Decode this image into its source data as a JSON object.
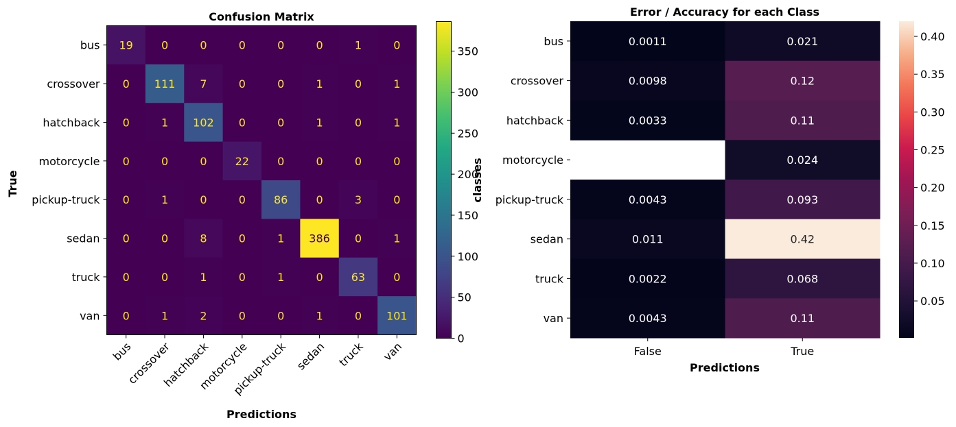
{
  "chart_data": [
    {
      "type": "heatmap",
      "title": "Confusion Matrix",
      "xlabel": "Predictions",
      "ylabel": "True",
      "x_categories": [
        "bus",
        "crossover",
        "hatchback",
        "motorcycle",
        "pickup-truck",
        "sedan",
        "truck",
        "van"
      ],
      "y_categories": [
        "bus",
        "crossover",
        "hatchback",
        "motorcycle",
        "pickup-truck",
        "sedan",
        "truck",
        "van"
      ],
      "values": [
        [
          19,
          0,
          0,
          0,
          0,
          0,
          1,
          0
        ],
        [
          0,
          111,
          7,
          0,
          0,
          1,
          0,
          1
        ],
        [
          0,
          1,
          102,
          0,
          0,
          1,
          0,
          1
        ],
        [
          0,
          0,
          0,
          22,
          0,
          0,
          0,
          0
        ],
        [
          0,
          1,
          0,
          0,
          86,
          0,
          3,
          0
        ],
        [
          0,
          0,
          8,
          0,
          1,
          386,
          0,
          1
        ],
        [
          0,
          0,
          1,
          0,
          1,
          0,
          63,
          0
        ],
        [
          0,
          1,
          2,
          0,
          0,
          1,
          0,
          101
        ]
      ],
      "colormap": "viridis",
      "colorbar": {
        "range": [
          0,
          386
        ],
        "ticks": [
          0,
          50,
          100,
          150,
          200,
          250,
          300,
          350
        ],
        "tick_labels": [
          "0",
          "50",
          "100",
          "150",
          "200",
          "250",
          "300",
          "350"
        ]
      },
      "annotation_colors": {
        "on_dark": "#fde725",
        "on_light": "#440154"
      }
    },
    {
      "type": "heatmap",
      "title": "Error / Accuracy for each Class",
      "xlabel": "Predictions",
      "ylabel": "classes",
      "x_categories": [
        "False",
        "True"
      ],
      "y_categories": [
        "bus",
        "crossover",
        "hatchback",
        "motorcycle",
        "pickup-truck",
        "sedan",
        "truck",
        "van"
      ],
      "values": [
        [
          0.0011,
          0.021
        ],
        [
          0.0098,
          0.12
        ],
        [
          0.0033,
          0.11
        ],
        [
          null,
          0.024
        ],
        [
          0.0043,
          0.093
        ],
        [
          0.011,
          0.42
        ],
        [
          0.0022,
          0.068
        ],
        [
          0.0043,
          0.11
        ]
      ],
      "labels": [
        [
          "0.0011",
          "0.021"
        ],
        [
          "0.0098",
          "0.12"
        ],
        [
          "0.0033",
          "0.11"
        ],
        [
          "",
          "0.024"
        ],
        [
          "0.0043",
          "0.093"
        ],
        [
          "0.011",
          "0.42"
        ],
        [
          "0.0022",
          "0.068"
        ],
        [
          "0.0043",
          "0.11"
        ]
      ],
      "colormap": "rocket",
      "colorbar": {
        "range": [
          0.0011,
          0.42
        ],
        "ticks": [
          0.05,
          0.1,
          0.15,
          0.2,
          0.25,
          0.3,
          0.35,
          0.4
        ],
        "tick_labels": [
          "0.05",
          "0.10",
          "0.15",
          "0.20",
          "0.25",
          "0.30",
          "0.35",
          "0.40"
        ]
      },
      "annotation_colors": {
        "on_dark": "#ffffff",
        "on_light": "#262626"
      }
    }
  ]
}
